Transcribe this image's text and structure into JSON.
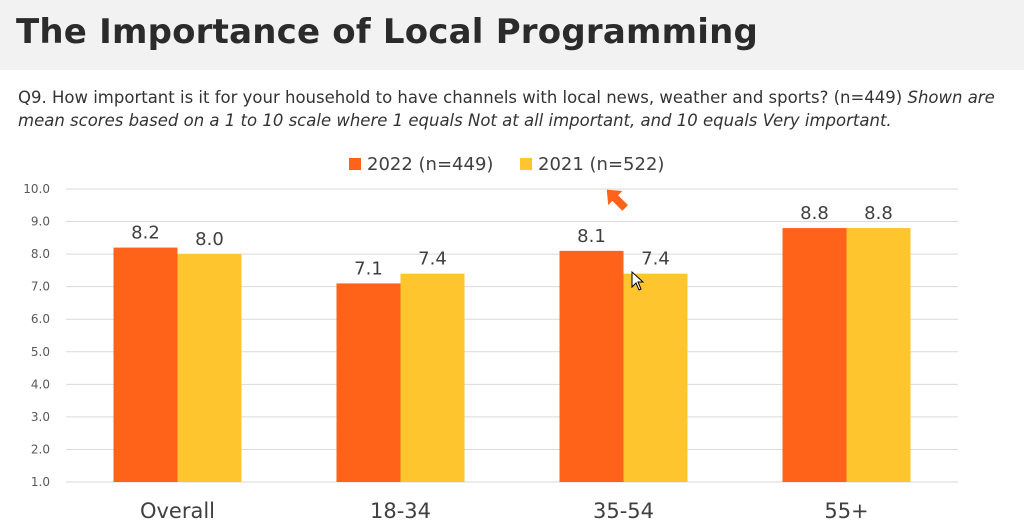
{
  "title": "The Importance of Local Programming",
  "question": {
    "text": "Q9. How important is it for your household to have channels with local news, weather and sports? (n=449)",
    "note": "Shown are mean scores based on a 1 to 10 scale where 1 equals Not at all important, and 10 equals Very important."
  },
  "colors": {
    "series_2022": "#ff6319",
    "series_2021": "#ffc52e",
    "gridline": "#d9d9d9",
    "arrow": "#ff6319"
  },
  "chart_data": {
    "type": "bar",
    "categories": [
      "Overall",
      "18-34",
      "35-54",
      "55+"
    ],
    "series": [
      {
        "name": "2022 (n=449)",
        "values": [
          8.2,
          7.1,
          8.1,
          8.8
        ],
        "labels": [
          "8.2",
          "7.1",
          "8.1",
          "8.8"
        ]
      },
      {
        "name": "2021 (n=522)",
        "values": [
          8.0,
          7.4,
          7.4,
          8.8
        ],
        "labels": [
          "8.0",
          "7.4",
          "7.4",
          "8.8"
        ]
      }
    ],
    "ylim": [
      1.0,
      10.0
    ],
    "yticks": [
      "1.0",
      "2.0",
      "3.0",
      "4.0",
      "5.0",
      "6.0",
      "7.0",
      "8.0",
      "9.0",
      "10.0"
    ],
    "grid": true,
    "legend_position": "top-center",
    "highlight_category": "35-54"
  }
}
